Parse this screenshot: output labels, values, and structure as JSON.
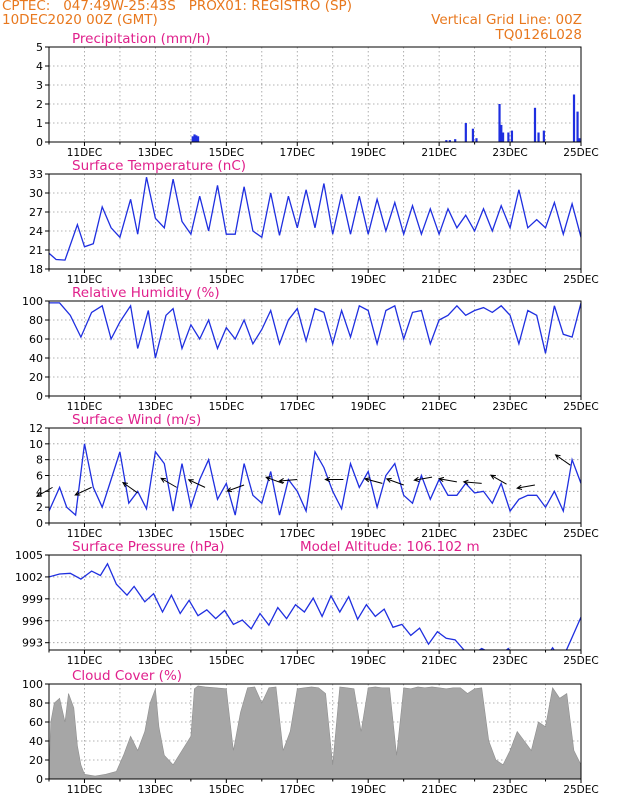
{
  "header": {
    "line1_left": "CPTEC:   047:49W-25:43S   PROX01: REGISTRO (SP)",
    "line2_left": "10DEC2020 00Z (GMT)",
    "line2_right": "Vertical Grid Line: 00Z",
    "line3_right": "TQ0126L028"
  },
  "colors": {
    "header": "#e8781e",
    "panel_title": "#e0208c",
    "series": "#1f2fe0",
    "cloud": "#a6a6a6",
    "wind_arrow": "#000000",
    "grid": "#9a9a9a"
  },
  "chart_data": [
    {
      "type": "bar",
      "title": "Precipitation (mm/h)",
      "ylim": [
        0,
        5
      ],
      "yticks": [
        0,
        1,
        2,
        3,
        4,
        5
      ],
      "x_tick_labels": [
        "11DEC",
        "13DEC",
        "15DEC",
        "17DEC",
        "19DEC",
        "21DEC",
        "23DEC",
        "25DEC"
      ],
      "x_tick_days": [
        1,
        3,
        5,
        7,
        9,
        11,
        13,
        15
      ],
      "x_range_days": [
        0,
        15
      ],
      "grid": true,
      "bars": [
        {
          "day": 4.05,
          "value": 0.3
        },
        {
          "day": 4.1,
          "value": 0.4
        },
        {
          "day": 4.15,
          "value": 0.35
        },
        {
          "day": 4.2,
          "value": 0.3
        },
        {
          "day": 11.2,
          "value": 0.1
        },
        {
          "day": 11.3,
          "value": 0.1
        },
        {
          "day": 11.45,
          "value": 0.15
        },
        {
          "day": 11.75,
          "value": 1.0
        },
        {
          "day": 11.95,
          "value": 0.7
        },
        {
          "day": 12.05,
          "value": 0.2
        },
        {
          "day": 12.7,
          "value": 2.0
        },
        {
          "day": 12.75,
          "value": 0.9
        },
        {
          "day": 12.8,
          "value": 0.5
        },
        {
          "day": 12.95,
          "value": 0.5
        },
        {
          "day": 13.05,
          "value": 0.6
        },
        {
          "day": 13.7,
          "value": 1.8
        },
        {
          "day": 13.8,
          "value": 0.5
        },
        {
          "day": 13.95,
          "value": 0.6
        },
        {
          "day": 14.8,
          "value": 2.5
        },
        {
          "day": 14.9,
          "value": 1.6
        },
        {
          "day": 14.95,
          "value": 0.2
        }
      ]
    },
    {
      "type": "line",
      "title": "Surface Temperature (nC)",
      "ylim": [
        18,
        33
      ],
      "yticks": [
        18,
        21,
        24,
        27,
        30,
        33
      ],
      "x_tick_labels": [
        "11DEC",
        "13DEC",
        "15DEC",
        "17DEC",
        "19DEC",
        "21DEC",
        "23DEC",
        "25DEC"
      ],
      "grid": true,
      "x": [
        0,
        0.2,
        0.45,
        0.8,
        1.0,
        1.25,
        1.5,
        1.75,
        2.0,
        2.3,
        2.5,
        2.75,
        3.0,
        3.25,
        3.5,
        3.75,
        4.0,
        4.25,
        4.5,
        4.75,
        5.0,
        5.25,
        5.5,
        5.75,
        6.0,
        6.25,
        6.5,
        6.75,
        7.0,
        7.25,
        7.5,
        7.75,
        8.0,
        8.25,
        8.5,
        8.75,
        9.0,
        9.25,
        9.5,
        9.75,
        10.0,
        10.25,
        10.5,
        10.75,
        11.0,
        11.25,
        11.5,
        11.75,
        12.0,
        12.25,
        12.5,
        12.75,
        13.0,
        13.25,
        13.5,
        13.75,
        14.0,
        14.25,
        14.5,
        14.75,
        15.0
      ],
      "y": [
        20.5,
        19.5,
        19.4,
        25,
        21.5,
        22,
        27.8,
        24.5,
        23,
        29,
        23.5,
        32.5,
        26,
        24.5,
        32.2,
        25.5,
        23.5,
        29.5,
        24,
        31.2,
        23.5,
        23.5,
        31,
        24,
        23,
        30,
        23.3,
        29.5,
        24.5,
        30.5,
        24.5,
        31.5,
        23.5,
        29.8,
        23.5,
        29.5,
        23.5,
        29,
        24,
        28.5,
        23.5,
        28,
        23.5,
        27.5,
        23.5,
        27.5,
        24.5,
        26.5,
        24,
        27.5,
        24,
        28,
        24.5,
        30.5,
        24.5,
        25.8,
        24.5,
        28.5,
        23.5,
        28.3,
        23
      ]
    },
    {
      "type": "line",
      "title": "Relative Humidity (%)",
      "ylim": [
        0,
        100
      ],
      "yticks": [
        0,
        20,
        40,
        60,
        80,
        100
      ],
      "x_tick_labels": [
        "11DEC",
        "13DEC",
        "15DEC",
        "17DEC",
        "19DEC",
        "21DEC",
        "23DEC",
        "25DEC"
      ],
      "grid": true,
      "x": [
        0,
        0.3,
        0.6,
        0.9,
        1.2,
        1.5,
        1.75,
        2.0,
        2.3,
        2.5,
        2.8,
        3.0,
        3.3,
        3.5,
        3.75,
        4.0,
        4.25,
        4.5,
        4.75,
        5.0,
        5.25,
        5.5,
        5.75,
        6.0,
        6.25,
        6.5,
        6.75,
        7.0,
        7.25,
        7.5,
        7.75,
        8.0,
        8.25,
        8.5,
        8.75,
        9.0,
        9.25,
        9.5,
        9.75,
        10.0,
        10.25,
        10.5,
        10.75,
        11.0,
        11.25,
        11.5,
        11.75,
        12.0,
        12.25,
        12.5,
        12.75,
        13.0,
        13.25,
        13.5,
        13.75,
        14.0,
        14.25,
        14.5,
        14.75,
        15.0
      ],
      "y": [
        98,
        98,
        85,
        62,
        88,
        95,
        60,
        78,
        95,
        50,
        90,
        40,
        85,
        92,
        50,
        75,
        60,
        80,
        50,
        72,
        60,
        80,
        55,
        70,
        90,
        55,
        80,
        92,
        58,
        92,
        88,
        55,
        90,
        62,
        95,
        90,
        55,
        90,
        95,
        60,
        88,
        90,
        55,
        80,
        85,
        95,
        85,
        90,
        93,
        88,
        95,
        85,
        55,
        90,
        85,
        45,
        95,
        65,
        62,
        98
      ]
    },
    {
      "type": "line",
      "title": "Surface Wind (m/s)",
      "ylim": [
        0,
        12
      ],
      "yticks": [
        0,
        2,
        4,
        6,
        8,
        10,
        12
      ],
      "x_tick_labels": [
        "11DEC",
        "13DEC",
        "15DEC",
        "17DEC",
        "19DEC",
        "21DEC",
        "23DEC",
        "25DEC"
      ],
      "grid": true,
      "x": [
        0,
        0.3,
        0.5,
        0.75,
        1.0,
        1.25,
        1.5,
        1.75,
        2.0,
        2.25,
        2.5,
        2.75,
        3.0,
        3.25,
        3.5,
        3.75,
        4.0,
        4.25,
        4.5,
        4.75,
        5.0,
        5.25,
        5.5,
        5.75,
        6.0,
        6.25,
        6.5,
        6.75,
        7.0,
        7.25,
        7.5,
        7.75,
        8.0,
        8.25,
        8.5,
        8.75,
        9.0,
        9.25,
        9.5,
        9.75,
        10.0,
        10.25,
        10.5,
        10.75,
        11.0,
        11.25,
        11.5,
        11.75,
        12.0,
        12.25,
        12.5,
        12.75,
        13.0,
        13.25,
        13.5,
        13.75,
        14.0,
        14.25,
        14.5,
        14.75,
        15.0
      ],
      "y": [
        1.5,
        4.5,
        2,
        1,
        10,
        4.5,
        2,
        5.5,
        9,
        2.5,
        4,
        1.8,
        9,
        7.5,
        1.5,
        7.5,
        2,
        5.5,
        8,
        3,
        5,
        1,
        7.5,
        3.5,
        2.5,
        6.5,
        1,
        5.5,
        4,
        1.5,
        9,
        7,
        4,
        1.8,
        7.5,
        4.5,
        6.5,
        2,
        6,
        7.5,
        3.5,
        2.5,
        6,
        3,
        5.5,
        3.5,
        3.5,
        5,
        3.8,
        4,
        2.5,
        5,
        1.5,
        3,
        3.5,
        3.5,
        2,
        4,
        1.5,
        8,
        5
      ],
      "wind_arrows": [
        {
          "day": 0.1,
          "speed": 4.5,
          "dir_deg": 150
        },
        {
          "day": 1.2,
          "speed": 4.5,
          "dir_deg": 155
        },
        {
          "day": 2.5,
          "speed": 3.8,
          "dir_deg": 215
        },
        {
          "day": 3.6,
          "speed": 4.5,
          "dir_deg": 210
        },
        {
          "day": 4.4,
          "speed": 4.5,
          "dir_deg": 205
        },
        {
          "day": 5.5,
          "speed": 4.8,
          "dir_deg": 160
        },
        {
          "day": 6.6,
          "speed": 5.0,
          "dir_deg": 200
        },
        {
          "day": 7.0,
          "speed": 5.5,
          "dir_deg": 175
        },
        {
          "day": 8.3,
          "speed": 5.5,
          "dir_deg": 180
        },
        {
          "day": 9.4,
          "speed": 5.0,
          "dir_deg": 195
        },
        {
          "day": 10.0,
          "speed": 4.8,
          "dir_deg": 200
        },
        {
          "day": 10.8,
          "speed": 5.8,
          "dir_deg": 170
        },
        {
          "day": 11.5,
          "speed": 5.2,
          "dir_deg": 190
        },
        {
          "day": 12.2,
          "speed": 5.0,
          "dir_deg": 185
        },
        {
          "day": 12.9,
          "speed": 4.9,
          "dir_deg": 210
        },
        {
          "day": 13.7,
          "speed": 4.8,
          "dir_deg": 170
        },
        {
          "day": 14.7,
          "speed": 7.3,
          "dir_deg": 215
        }
      ]
    },
    {
      "type": "line",
      "title": "Surface Pressure (hPa)",
      "annotation": "Model Altitude: 106.102  m",
      "ylim": [
        992,
        1005
      ],
      "yticks": [
        993,
        996,
        999,
        1002,
        1005
      ],
      "x_tick_labels": [
        "11DEC",
        "13DEC",
        "15DEC",
        "17DEC",
        "19DEC",
        "21DEC",
        "23DEC",
        "25DEC"
      ],
      "grid": true,
      "x": [
        0,
        0.3,
        0.6,
        0.9,
        1.2,
        1.45,
        1.65,
        1.9,
        2.2,
        2.4,
        2.7,
        2.95,
        3.2,
        3.45,
        3.7,
        3.95,
        4.2,
        4.45,
        4.7,
        4.95,
        5.2,
        5.45,
        5.7,
        5.95,
        6.2,
        6.45,
        6.7,
        6.95,
        7.2,
        7.45,
        7.7,
        7.95,
        8.2,
        8.45,
        8.7,
        8.95,
        9.2,
        9.45,
        9.7,
        9.95,
        10.2,
        10.45,
        10.7,
        10.95,
        11.2,
        11.45,
        11.7,
        11.95,
        12.2,
        12.45,
        12.7,
        12.95,
        13.2,
        13.45,
        13.7,
        13.95,
        14.2,
        14.45,
        14.7,
        15.0
      ],
      "y": [
        1002,
        1002.4,
        1002.5,
        1001.7,
        1002.8,
        1002.2,
        1003.8,
        1001,
        999.5,
        1000.7,
        998.6,
        999.7,
        997.2,
        999.5,
        997,
        998.8,
        996.7,
        997.5,
        996.3,
        997.4,
        995.5,
        996.1,
        994.9,
        997,
        995.4,
        997.8,
        996.3,
        998.2,
        997.2,
        999.1,
        996.6,
        999.4,
        997.2,
        999.3,
        996.2,
        998.2,
        996.6,
        997.6,
        995.1,
        995.5,
        994,
        995,
        992.8,
        994.5,
        993.6,
        993.4,
        992,
        991.4,
        992.2,
        991.6,
        991.2,
        992.2,
        990.8,
        990.7,
        991.8,
        990,
        992.3,
        990.5,
        993.2,
        996.5
      ]
    },
    {
      "type": "area",
      "title": "Cloud Cover (%)",
      "ylim": [
        0,
        100
      ],
      "yticks": [
        0,
        20,
        40,
        60,
        80,
        100
      ],
      "x_tick_labels": [
        "11DEC",
        "13DEC",
        "15DEC",
        "17DEC",
        "19DEC",
        "21DEC",
        "23DEC",
        "25DEC"
      ],
      "grid": true,
      "x": [
        0,
        0.05,
        0.15,
        0.3,
        0.45,
        0.55,
        0.7,
        0.8,
        0.9,
        1.0,
        1.3,
        1.6,
        1.9,
        2.1,
        2.3,
        2.5,
        2.7,
        2.85,
        3.0,
        3.1,
        3.25,
        3.5,
        3.75,
        4.0,
        4.1,
        4.2,
        4.4,
        4.7,
        5.0,
        5.2,
        5.4,
        5.6,
        5.8,
        6.0,
        6.2,
        6.4,
        6.6,
        6.8,
        7.0,
        7.2,
        7.4,
        7.6,
        7.8,
        8.0,
        8.2,
        8.4,
        8.6,
        8.8,
        9.0,
        9.2,
        9.4,
        9.6,
        9.8,
        10.0,
        10.2,
        10.4,
        10.6,
        10.8,
        11.0,
        11.2,
        11.4,
        11.6,
        11.8,
        12.0,
        12.2,
        12.4,
        12.6,
        12.8,
        13.0,
        13.2,
        13.4,
        13.6,
        13.8,
        14.0,
        14.2,
        14.4,
        14.6,
        14.8,
        15.0
      ],
      "y": [
        5,
        60,
        80,
        85,
        60,
        90,
        75,
        35,
        15,
        5,
        3,
        5,
        8,
        25,
        45,
        30,
        50,
        80,
        95,
        55,
        25,
        15,
        30,
        45,
        95,
        98,
        97,
        96,
        95,
        30,
        70,
        96,
        97,
        80,
        96,
        97,
        30,
        50,
        95,
        96,
        97,
        96,
        90,
        15,
        97,
        96,
        95,
        50,
        96,
        97,
        96,
        96,
        25,
        96,
        95,
        97,
        96,
        97,
        96,
        95,
        96,
        96,
        90,
        95,
        96,
        40,
        20,
        15,
        30,
        50,
        40,
        30,
        60,
        55,
        96,
        85,
        90,
        30,
        15
      ]
    }
  ]
}
